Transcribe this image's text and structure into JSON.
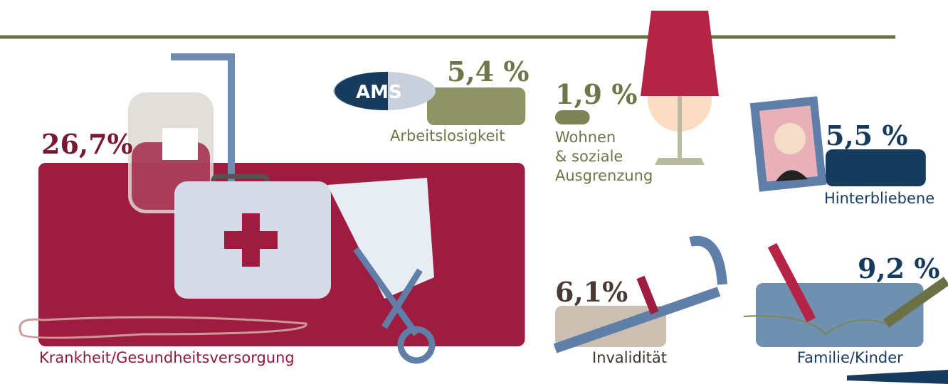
{
  "chart_data": {
    "type": "area",
    "categories": [
      "Krankheit/Gesundheitsversorgung",
      "Arbeitslosigkeit",
      "Wohnen\n& soziale\nAusgrenzung",
      "Hinterbliebene",
      "Invalidität",
      "Familie/Kinder"
    ],
    "values": [
      26.7,
      5.4,
      1.9,
      5.5,
      6.1,
      9.2
    ],
    "value_labels": [
      "26,7%",
      "5,4 %",
      "1,9 %",
      "5,5 %",
      "6,1%",
      "9,2 %"
    ],
    "colors": [
      "#9e1c40",
      "#8f9467",
      "#7f8456",
      "#163b5c",
      "#cbbfb2",
      "#7090b0"
    ],
    "logo": "AMS"
  }
}
